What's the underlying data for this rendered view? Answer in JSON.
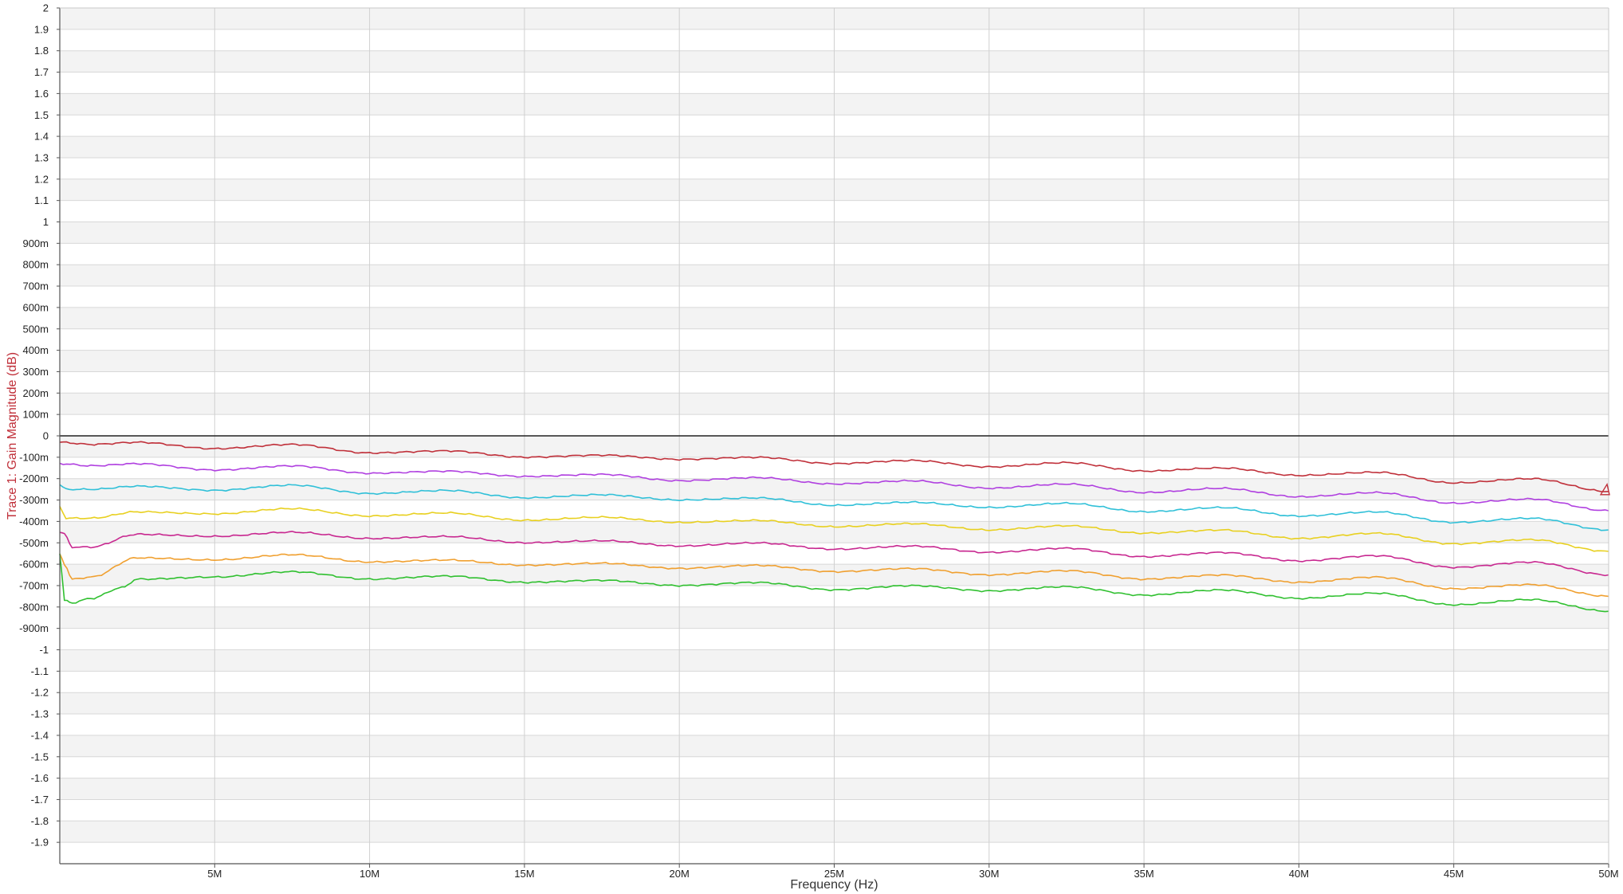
{
  "chart_data": {
    "type": "line",
    "title": "",
    "xlabel": "Frequency (Hz)",
    "ylabel": "Trace 1: Gain Magnitude (dB)",
    "xlim": [
      0,
      50000000
    ],
    "ylim": [
      -2,
      2
    ],
    "grid": true,
    "x_ticks": [
      {
        "value": 5000000,
        "label": "5M"
      },
      {
        "value": 10000000,
        "label": "10M"
      },
      {
        "value": 15000000,
        "label": "15M"
      },
      {
        "value": 20000000,
        "label": "20M"
      },
      {
        "value": 25000000,
        "label": "25M"
      },
      {
        "value": 30000000,
        "label": "30M"
      },
      {
        "value": 35000000,
        "label": "35M"
      },
      {
        "value": 40000000,
        "label": "40M"
      },
      {
        "value": 45000000,
        "label": "45M"
      },
      {
        "value": 50000000,
        "label": "50M"
      }
    ],
    "y_ticks": [
      {
        "value": 2,
        "label": "2"
      },
      {
        "value": 1.9,
        "label": "1.9"
      },
      {
        "value": 1.8,
        "label": "1.8"
      },
      {
        "value": 1.7,
        "label": "1.7"
      },
      {
        "value": 1.6,
        "label": "1.6"
      },
      {
        "value": 1.5,
        "label": "1.5"
      },
      {
        "value": 1.4,
        "label": "1.4"
      },
      {
        "value": 1.3,
        "label": "1.3"
      },
      {
        "value": 1.2,
        "label": "1.2"
      },
      {
        "value": 1.1,
        "label": "1.1"
      },
      {
        "value": 1,
        "label": "1"
      },
      {
        "value": 0.9,
        "label": "900m"
      },
      {
        "value": 0.8,
        "label": "800m"
      },
      {
        "value": 0.7,
        "label": "700m"
      },
      {
        "value": 0.6,
        "label": "600m"
      },
      {
        "value": 0.5,
        "label": "500m"
      },
      {
        "value": 0.4,
        "label": "400m"
      },
      {
        "value": 0.3,
        "label": "300m"
      },
      {
        "value": 0.2,
        "label": "200m"
      },
      {
        "value": 0.1,
        "label": "100m"
      },
      {
        "value": 0,
        "label": "0"
      },
      {
        "value": -0.1,
        "label": "-100m"
      },
      {
        "value": -0.2,
        "label": "-200m"
      },
      {
        "value": -0.3,
        "label": "-300m"
      },
      {
        "value": -0.4,
        "label": "-400m"
      },
      {
        "value": -0.5,
        "label": "-500m"
      },
      {
        "value": -0.6,
        "label": "-600m"
      },
      {
        "value": -0.7,
        "label": "-700m"
      },
      {
        "value": -0.8,
        "label": "-800m"
      },
      {
        "value": -0.9,
        "label": "-900m"
      },
      {
        "value": -1,
        "label": "-1"
      },
      {
        "value": -1.1,
        "label": "-1.1"
      },
      {
        "value": -1.2,
        "label": "-1.2"
      },
      {
        "value": -1.3,
        "label": "-1.3"
      },
      {
        "value": -1.4,
        "label": "-1.4"
      },
      {
        "value": -1.5,
        "label": "-1.5"
      },
      {
        "value": -1.6,
        "label": "-1.6"
      },
      {
        "value": -1.7,
        "label": "-1.7"
      },
      {
        "value": -1.8,
        "label": "-1.8"
      },
      {
        "value": -1.9,
        "label": "-1.9"
      }
    ],
    "series": [
      {
        "name": "trace-red",
        "color": "#c0303a",
        "x": [
          0,
          1000000,
          2500000,
          5000000,
          7500000,
          10000000,
          12500000,
          15000000,
          17500000,
          20000000,
          22500000,
          25000000,
          27500000,
          30000000,
          32500000,
          35000000,
          37500000,
          40000000,
          42500000,
          45000000,
          47500000,
          50000000
        ],
        "y": [
          -0.03,
          -0.04,
          -0.03,
          -0.06,
          -0.04,
          -0.08,
          -0.07,
          -0.1,
          -0.09,
          -0.11,
          -0.1,
          -0.13,
          -0.115,
          -0.145,
          -0.125,
          -0.165,
          -0.15,
          -0.185,
          -0.17,
          -0.22,
          -0.2,
          -0.26
        ]
      },
      {
        "name": "trace-violet",
        "color": "#b040e0",
        "x": [
          0,
          1000000,
          2500000,
          5000000,
          7500000,
          10000000,
          12500000,
          15000000,
          17500000,
          20000000,
          22500000,
          25000000,
          27500000,
          30000000,
          32500000,
          35000000,
          37500000,
          40000000,
          42500000,
          45000000,
          47500000,
          50000000
        ],
        "y": [
          -0.13,
          -0.14,
          -0.13,
          -0.16,
          -0.14,
          -0.175,
          -0.165,
          -0.19,
          -0.18,
          -0.21,
          -0.195,
          -0.225,
          -0.21,
          -0.245,
          -0.225,
          -0.265,
          -0.245,
          -0.285,
          -0.265,
          -0.315,
          -0.295,
          -0.35
        ]
      },
      {
        "name": "trace-cyan",
        "color": "#30c0d8",
        "x": [
          0,
          200000,
          1000000,
          2500000,
          5000000,
          7500000,
          10000000,
          12500000,
          15000000,
          17500000,
          20000000,
          22500000,
          25000000,
          27500000,
          30000000,
          32500000,
          35000000,
          37500000,
          40000000,
          42500000,
          45000000,
          47500000,
          50000000
        ],
        "y": [
          -0.23,
          -0.25,
          -0.25,
          -0.235,
          -0.255,
          -0.23,
          -0.27,
          -0.255,
          -0.29,
          -0.275,
          -0.3,
          -0.29,
          -0.325,
          -0.31,
          -0.335,
          -0.315,
          -0.355,
          -0.335,
          -0.375,
          -0.355,
          -0.405,
          -0.385,
          -0.44
        ]
      },
      {
        "name": "trace-yellow",
        "color": "#e8d020",
        "x": [
          0,
          200000,
          1000000,
          2500000,
          5000000,
          7500000,
          10000000,
          12500000,
          15000000,
          17500000,
          20000000,
          22500000,
          25000000,
          27500000,
          30000000,
          32500000,
          35000000,
          37500000,
          40000000,
          42500000,
          45000000,
          47500000,
          50000000
        ],
        "y": [
          -0.33,
          -0.385,
          -0.385,
          -0.355,
          -0.365,
          -0.34,
          -0.375,
          -0.36,
          -0.395,
          -0.38,
          -0.405,
          -0.395,
          -0.425,
          -0.41,
          -0.44,
          -0.42,
          -0.455,
          -0.44,
          -0.48,
          -0.455,
          -0.505,
          -0.485,
          -0.54
        ]
      },
      {
        "name": "trace-magenta",
        "color": "#c82890",
        "x": [
          0,
          150000,
          400000,
          1000000,
          2500000,
          5000000,
          7500000,
          10000000,
          12500000,
          15000000,
          17500000,
          20000000,
          22500000,
          25000000,
          27500000,
          30000000,
          32500000,
          35000000,
          37500000,
          40000000,
          42500000,
          45000000,
          47500000,
          50000000
        ],
        "y": [
          -0.45,
          -0.46,
          -0.52,
          -0.52,
          -0.46,
          -0.47,
          -0.45,
          -0.48,
          -0.47,
          -0.5,
          -0.49,
          -0.515,
          -0.5,
          -0.53,
          -0.515,
          -0.545,
          -0.525,
          -0.565,
          -0.545,
          -0.585,
          -0.56,
          -0.615,
          -0.59,
          -0.65
        ]
      },
      {
        "name": "trace-orange",
        "color": "#f0a030",
        "x": [
          0,
          150000,
          400000,
          1000000,
          2500000,
          5000000,
          7500000,
          10000000,
          12500000,
          15000000,
          17500000,
          20000000,
          22500000,
          25000000,
          27500000,
          30000000,
          32500000,
          35000000,
          37500000,
          40000000,
          42500000,
          45000000,
          47500000,
          50000000
        ],
        "y": [
          -0.55,
          -0.6,
          -0.67,
          -0.66,
          -0.57,
          -0.58,
          -0.555,
          -0.59,
          -0.58,
          -0.605,
          -0.595,
          -0.62,
          -0.605,
          -0.635,
          -0.62,
          -0.65,
          -0.63,
          -0.67,
          -0.65,
          -0.685,
          -0.66,
          -0.715,
          -0.695,
          -0.75
        ]
      },
      {
        "name": "trace-green",
        "color": "#30c030",
        "x": [
          0,
          150000,
          400000,
          1000000,
          2000000,
          2500000,
          5000000,
          7500000,
          10000000,
          12500000,
          15000000,
          17500000,
          20000000,
          22500000,
          25000000,
          27500000,
          30000000,
          32500000,
          35000000,
          37500000,
          40000000,
          42500000,
          45000000,
          47500000,
          50000000
        ],
        "y": [
          -0.55,
          -0.77,
          -0.78,
          -0.76,
          -0.71,
          -0.67,
          -0.66,
          -0.635,
          -0.67,
          -0.655,
          -0.685,
          -0.675,
          -0.7,
          -0.685,
          -0.72,
          -0.7,
          -0.725,
          -0.705,
          -0.745,
          -0.72,
          -0.76,
          -0.735,
          -0.79,
          -0.765,
          -0.82
        ]
      }
    ],
    "zero_line_color": "#222222",
    "ylabel_color": "#c0303a",
    "marker_color": "#c0303a"
  }
}
